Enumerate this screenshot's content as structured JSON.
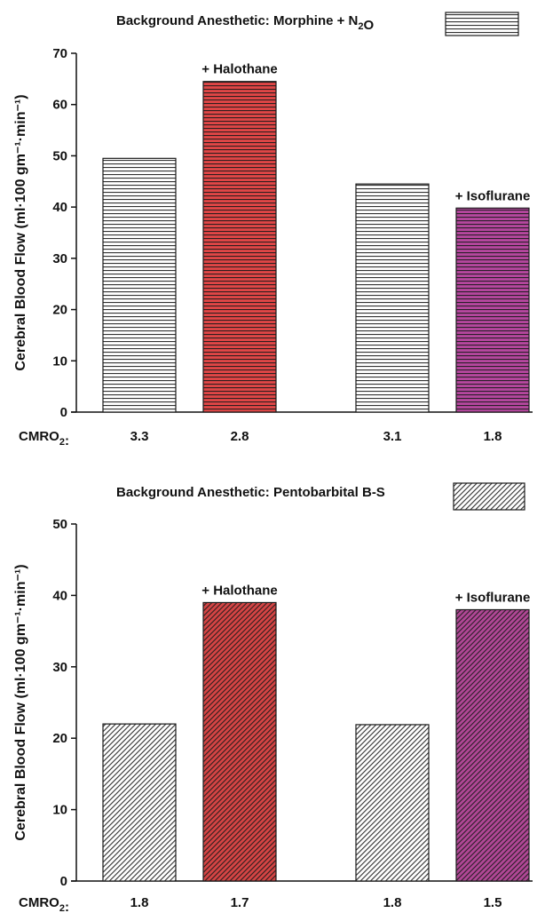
{
  "chart_data": [
    {
      "type": "bar",
      "legend": {
        "text": "Background Anesthetic:  Morphine + N₂O",
        "pattern": "horizontal"
      },
      "ylabel": "Cerebral Blood Flow (ml·100 gm⁻¹·min⁻¹)",
      "ylim": [
        0,
        70
      ],
      "yticks": [
        0,
        10,
        20,
        30,
        40,
        50,
        60,
        70
      ],
      "cmro_label": "CMRO₂:",
      "bars": [
        {
          "value": 49.5,
          "cmro2": "3.3",
          "annotation": "",
          "fill": "#ffffff",
          "pattern": "horizontal"
        },
        {
          "value": 64.5,
          "cmro2": "2.8",
          "annotation": "+ Halothane",
          "fill": "#e04646",
          "pattern": "horizontal"
        },
        {
          "value": 44.5,
          "cmro2": "3.1",
          "annotation": "",
          "fill": "#ffffff",
          "pattern": "horizontal"
        },
        {
          "value": 39.8,
          "cmro2": "1.8",
          "annotation": "+ Isoflurane",
          "fill": "#b5479e",
          "pattern": "horizontal"
        }
      ]
    },
    {
      "type": "bar",
      "legend": {
        "text": "Background Anesthetic:  Pentobarbital B-S",
        "pattern": "diagonal"
      },
      "ylabel": "Cerebral Blood Flow (ml·100 gm⁻¹·min⁻¹)",
      "ylim": [
        0,
        50
      ],
      "yticks": [
        0,
        10,
        20,
        30,
        40,
        50
      ],
      "cmro_label": "CMRO₂:",
      "bars": [
        {
          "value": 22.0,
          "cmro2": "1.8",
          "annotation": "",
          "fill": "#ffffff",
          "pattern": "diagonal"
        },
        {
          "value": 39.0,
          "cmro2": "1.7",
          "annotation": "+ Halothane",
          "fill": "#d54444",
          "pattern": "diagonal"
        },
        {
          "value": 21.9,
          "cmro2": "1.8",
          "annotation": "",
          "fill": "#ffffff",
          "pattern": "diagonal"
        },
        {
          "value": 38.0,
          "cmro2": "1.5",
          "annotation": "+ Isoflurane",
          "fill": "#b14796",
          "pattern": "diagonal"
        }
      ]
    }
  ]
}
